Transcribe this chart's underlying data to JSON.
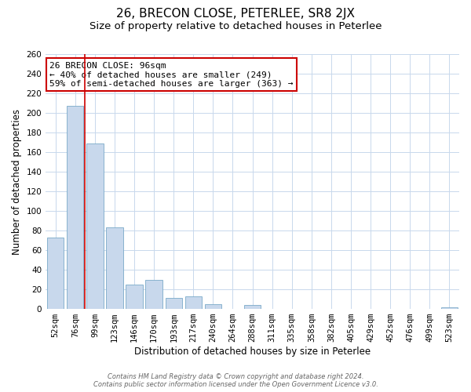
{
  "title": "26, BRECON CLOSE, PETERLEE, SR8 2JX",
  "subtitle": "Size of property relative to detached houses in Peterlee",
  "xlabel": "Distribution of detached houses by size in Peterlee",
  "ylabel": "Number of detached properties",
  "categories": [
    "52sqm",
    "76sqm",
    "99sqm",
    "123sqm",
    "146sqm",
    "170sqm",
    "193sqm",
    "217sqm",
    "240sqm",
    "264sqm",
    "288sqm",
    "311sqm",
    "335sqm",
    "358sqm",
    "382sqm",
    "405sqm",
    "429sqm",
    "452sqm",
    "476sqm",
    "499sqm",
    "523sqm"
  ],
  "values": [
    73,
    207,
    169,
    83,
    25,
    30,
    11,
    13,
    5,
    0,
    4,
    0,
    0,
    0,
    0,
    0,
    0,
    0,
    0,
    0,
    2
  ],
  "bar_fill_color": "#c8d8ec",
  "bar_edge_color": "#7aaac8",
  "vline_x": 1.5,
  "vline_color": "#cc0000",
  "ylim": [
    0,
    260
  ],
  "yticks": [
    0,
    20,
    40,
    60,
    80,
    100,
    120,
    140,
    160,
    180,
    200,
    220,
    240,
    260
  ],
  "annotation_title": "26 BRECON CLOSE: 96sqm",
  "annotation_line1": "← 40% of detached houses are smaller (249)",
  "annotation_line2": "59% of semi-detached houses are larger (363) →",
  "footer_line1": "Contains HM Land Registry data © Crown copyright and database right 2024.",
  "footer_line2": "Contains public sector information licensed under the Open Government Licence v3.0.",
  "background_color": "#ffffff",
  "grid_color": "#c8d8ec",
  "title_fontsize": 11,
  "subtitle_fontsize": 9.5,
  "axis_label_fontsize": 8.5,
  "tick_fontsize": 7.5,
  "annotation_fontsize": 8,
  "annotation_box_edge_color": "#cc0000",
  "annotation_box_fill": "#ffffff",
  "footer_fontsize": 6,
  "footer_color": "#666666"
}
